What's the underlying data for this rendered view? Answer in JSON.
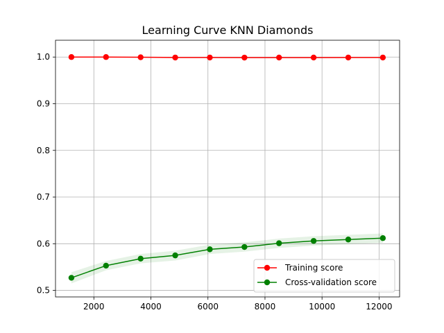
{
  "chart_data": {
    "type": "line",
    "title": "Learning Curve KNN Diamonds",
    "xlabel": "",
    "ylabel": "",
    "xlim": [
      655,
      12720
    ],
    "ylim": [
      0.486,
      1.036
    ],
    "grid": true,
    "legend_position": "lower-right",
    "x_ticks": [
      2000,
      4000,
      6000,
      8000,
      10000,
      12000
    ],
    "x_tick_labels": [
      "2000",
      "4000",
      "6000",
      "8000",
      "10000",
      "12000"
    ],
    "y_ticks": [
      0.5,
      0.6,
      0.7,
      0.8,
      0.9,
      1.0
    ],
    "y_tick_labels": [
      "0.5",
      "0.6",
      "0.7",
      "0.8",
      "0.9",
      "1.0"
    ],
    "x": [
      1213,
      2426,
      3640,
      4853,
      6066,
      7280,
      8493,
      9706,
      10920,
      12133
    ],
    "series": [
      {
        "name": "Training score",
        "color": "#ff0000",
        "marker": "circle",
        "values": [
          1.0,
          1.0,
          0.9995,
          0.999,
          0.999,
          0.9988,
          0.9989,
          0.9989,
          0.999,
          0.999
        ],
        "band_lower": [
          0.9995,
          0.9995,
          0.999,
          0.9985,
          0.9985,
          0.9983,
          0.9984,
          0.9984,
          0.9985,
          0.9985
        ],
        "band_upper": [
          1.0005,
          1.0005,
          1.0,
          0.9995,
          0.9995,
          0.9993,
          0.9994,
          0.9994,
          0.9995,
          0.9995
        ]
      },
      {
        "name": "Cross-validation score",
        "color": "#008000",
        "marker": "circle",
        "values": [
          0.527,
          0.553,
          0.568,
          0.575,
          0.588,
          0.593,
          0.601,
          0.606,
          0.609,
          0.612
        ],
        "band_lower": [
          0.515,
          0.543,
          0.558,
          0.564,
          0.578,
          0.583,
          0.591,
          0.596,
          0.599,
          0.602
        ],
        "band_upper": [
          0.539,
          0.563,
          0.578,
          0.585,
          0.598,
          0.603,
          0.611,
          0.616,
          0.619,
          0.622
        ],
        "band_color": "#008000"
      }
    ]
  }
}
